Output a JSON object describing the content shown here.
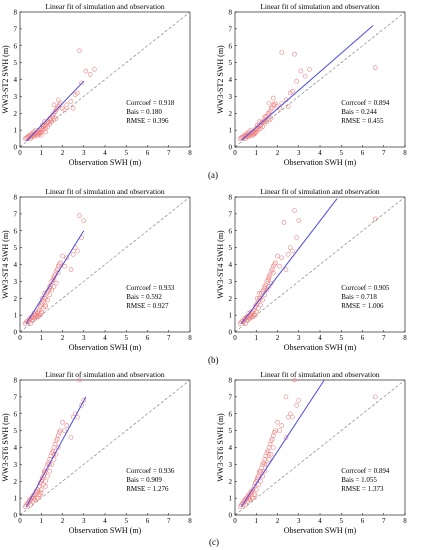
{
  "figure": {
    "row_labels": [
      "(a)",
      "(b)",
      "(c)"
    ],
    "colors": {
      "points": "#f08080",
      "fit_line": "#4a4ae0",
      "reference_line": "#888888",
      "axes": "#000000"
    }
  },
  "chart_data": [
    {
      "type": "scatter",
      "title": "Linear fit of simulation and observation",
      "xlabel": "Observation SWH (m)",
      "ylabel": "WW3-ST2   SWH (m)",
      "xlim": [
        0,
        8
      ],
      "ylim": [
        0,
        8
      ],
      "xticks": [
        "0",
        "1",
        "2",
        "3",
        "4",
        "5",
        "6",
        "7",
        "8"
      ],
      "yticks": [
        "0",
        "1",
        "2",
        "3",
        "4",
        "5",
        "6",
        "7",
        "8"
      ],
      "stats": [
        "Corrcoef = 0.918",
        "Bais = 0.180",
        "RMSE = 0.396"
      ],
      "fit_line": {
        "x": [
          0.3,
          3.0
        ],
        "y": [
          0.35,
          3.9
        ]
      },
      "x": [
        0.25,
        0.3,
        0.35,
        0.4,
        0.45,
        0.5,
        0.55,
        0.6,
        0.65,
        0.7,
        0.75,
        0.8,
        0.85,
        0.9,
        0.95,
        1.0,
        1.05,
        1.1,
        1.15,
        1.2,
        1.25,
        1.3,
        1.35,
        1.4,
        1.45,
        1.5,
        1.55,
        1.6,
        1.65,
        1.7,
        1.75,
        1.8,
        1.85,
        1.9,
        0.5,
        0.6,
        0.7,
        0.8,
        0.9,
        1.0,
        1.1,
        1.2,
        1.3,
        1.4,
        1.5,
        1.6,
        1.7,
        0.45,
        0.55,
        0.65,
        0.75,
        0.85,
        0.95,
        1.05,
        1.15,
        2.0,
        2.1,
        2.2,
        2.4,
        2.5,
        2.6,
        2.7,
        2.8,
        2.9,
        3.1,
        3.3,
        3.5,
        1.4,
        1.6,
        1.8,
        1.2,
        1.0
      ],
      "y": [
        0.5,
        0.55,
        0.6,
        0.55,
        0.65,
        0.6,
        0.7,
        0.75,
        0.7,
        0.8,
        0.75,
        0.8,
        0.9,
        0.85,
        1.0,
        1.1,
        1.05,
        1.2,
        1.3,
        1.25,
        1.4,
        1.5,
        1.45,
        1.6,
        1.7,
        1.8,
        1.9,
        2.0,
        2.1,
        2.2,
        2.3,
        2.4,
        2.5,
        2.6,
        0.5,
        0.6,
        0.65,
        0.7,
        0.8,
        0.9,
        1.0,
        1.1,
        1.2,
        1.35,
        1.5,
        1.6,
        1.7,
        0.7,
        0.8,
        0.9,
        1.0,
        0.7,
        0.8,
        1.3,
        1.5,
        2.3,
        2.2,
        2.5,
        2.7,
        2.3,
        3.1,
        3.2,
        5.7,
        3.8,
        4.5,
        4.3,
        4.6,
        1.7,
        2.5,
        2.8,
        0.9,
        0.7
      ]
    },
    {
      "type": "scatter",
      "title": "Linear fit of simulation and observation",
      "xlabel": "Observation SWH (m)",
      "ylabel": "WW3-ST2   SWH (m)",
      "xlim": [
        0,
        8
      ],
      "ylim": [
        0,
        8
      ],
      "xticks": [
        "0",
        "1",
        "2",
        "3",
        "4",
        "5",
        "6",
        "7",
        "8"
      ],
      "yticks": [
        "0",
        "1",
        "2",
        "3",
        "4",
        "5",
        "6",
        "7",
        "8"
      ],
      "stats": [
        "Corrcoef = 0.894",
        "Bais = 0.244",
        "RMSE = 0.455"
      ],
      "fit_line": {
        "x": [
          0.3,
          6.5
        ],
        "y": [
          0.4,
          7.2
        ]
      },
      "x": [
        0.25,
        0.3,
        0.35,
        0.4,
        0.45,
        0.5,
        0.55,
        0.6,
        0.65,
        0.7,
        0.75,
        0.8,
        0.85,
        0.9,
        0.95,
        1.0,
        1.05,
        1.1,
        1.15,
        1.2,
        1.25,
        1.3,
        1.35,
        1.4,
        1.45,
        1.5,
        1.55,
        1.6,
        1.65,
        1.7,
        1.75,
        1.8,
        1.85,
        1.9,
        0.5,
        0.6,
        0.7,
        0.8,
        0.9,
        1.0,
        1.1,
        1.2,
        1.3,
        1.4,
        1.5,
        1.6,
        1.7,
        0.45,
        0.55,
        0.65,
        0.75,
        0.85,
        0.95,
        1.05,
        1.15,
        2.0,
        2.1,
        2.2,
        2.4,
        2.5,
        2.6,
        2.7,
        2.8,
        2.9,
        3.1,
        3.3,
        3.5,
        1.4,
        1.6,
        1.8,
        2.2,
        6.6
      ],
      "y": [
        0.5,
        0.55,
        0.6,
        0.55,
        0.65,
        0.6,
        0.7,
        0.75,
        0.7,
        0.8,
        0.75,
        0.85,
        0.9,
        0.85,
        1.0,
        1.1,
        1.05,
        1.2,
        1.3,
        1.25,
        1.45,
        1.5,
        1.5,
        1.6,
        1.8,
        1.8,
        2.0,
        2.0,
        2.1,
        2.3,
        2.3,
        2.5,
        2.5,
        2.6,
        0.5,
        0.6,
        0.65,
        0.7,
        0.8,
        0.9,
        1.0,
        1.1,
        1.2,
        1.4,
        1.5,
        1.6,
        1.7,
        0.7,
        0.8,
        0.9,
        1.0,
        0.7,
        0.8,
        1.3,
        1.5,
        2.4,
        2.3,
        2.6,
        2.8,
        2.4,
        3.2,
        3.3,
        5.5,
        3.9,
        4.5,
        4.2,
        4.6,
        1.8,
        2.6,
        2.9,
        5.6,
        4.7
      ]
    },
    {
      "type": "scatter",
      "title": "Linear fit of simulation and observation",
      "xlabel": "Observation SWH (m)",
      "ylabel": "WW3-ST4   SWH (m)",
      "xlim": [
        0,
        8
      ],
      "ylim": [
        0,
        8
      ],
      "xticks": [
        "0",
        "1",
        "2",
        "3",
        "4",
        "5",
        "6",
        "7",
        "8"
      ],
      "yticks": [
        "0",
        "1",
        "2",
        "3",
        "4",
        "5",
        "6",
        "7",
        "8"
      ],
      "stats": [
        "Corrcoef = 0.933",
        "Bais = 0.592",
        "RMSE = 0.927"
      ],
      "fit_line": {
        "x": [
          0.3,
          3.0
        ],
        "y": [
          0.5,
          6.0
        ]
      },
      "x": [
        0.25,
        0.3,
        0.35,
        0.4,
        0.45,
        0.5,
        0.55,
        0.6,
        0.65,
        0.7,
        0.75,
        0.8,
        0.85,
        0.9,
        0.95,
        1.0,
        1.05,
        1.1,
        1.15,
        1.2,
        1.25,
        1.3,
        1.35,
        1.4,
        1.45,
        1.5,
        1.55,
        1.6,
        1.65,
        1.7,
        1.75,
        1.8,
        1.85,
        1.9,
        0.5,
        0.6,
        0.7,
        0.8,
        0.9,
        1.0,
        1.1,
        1.2,
        1.3,
        1.4,
        1.5,
        1.6,
        1.7,
        0.45,
        0.55,
        0.65,
        0.75,
        0.85,
        0.95,
        1.05,
        1.15,
        2.0,
        2.1,
        2.2,
        2.4,
        2.5,
        2.6,
        2.7,
        2.8,
        2.9,
        3.0,
        1.4,
        1.6,
        1.8,
        1.2,
        1.0
      ],
      "y": [
        0.5,
        0.6,
        0.65,
        0.6,
        0.7,
        0.8,
        0.85,
        0.9,
        0.85,
        1.0,
        1.0,
        1.1,
        1.2,
        1.3,
        1.5,
        1.6,
        1.7,
        1.8,
        2.0,
        2.0,
        2.3,
        2.4,
        2.5,
        2.7,
        2.8,
        3.0,
        3.1,
        3.3,
        3.4,
        3.6,
        3.7,
        3.9,
        4.0,
        4.1,
        0.5,
        0.7,
        0.8,
        0.9,
        1.0,
        1.2,
        1.4,
        1.6,
        1.9,
        2.2,
        2.5,
        2.7,
        2.9,
        0.8,
        0.9,
        1.1,
        1.2,
        0.9,
        1.0,
        2.0,
        2.3,
        4.5,
        3.9,
        4.4,
        3.7,
        4.6,
        5.0,
        4.8,
        6.9,
        5.6,
        6.6,
        2.6,
        3.2,
        3.5,
        1.5,
        1.1
      ]
    },
    {
      "type": "scatter",
      "title": "Linear fit of simulation and observation",
      "xlabel": "Observation SWH (m)",
      "ylabel": "WW3-ST4   SWH (m)",
      "xlim": [
        0,
        8
      ],
      "ylim": [
        0,
        8
      ],
      "xticks": [
        "0",
        "1",
        "2",
        "3",
        "4",
        "5",
        "6",
        "7",
        "8"
      ],
      "yticks": [
        "0",
        "1",
        "2",
        "3",
        "4",
        "5",
        "6",
        "7",
        "8"
      ],
      "stats": [
        "Corrcoef = 0.905",
        "Bais = 0.718",
        "RMSE = 1.006"
      ],
      "fit_line": {
        "x": [
          0.3,
          4.8
        ],
        "y": [
          0.5,
          7.9
        ]
      },
      "x": [
        0.25,
        0.3,
        0.35,
        0.4,
        0.45,
        0.5,
        0.55,
        0.6,
        0.65,
        0.7,
        0.75,
        0.8,
        0.85,
        0.9,
        0.95,
        1.0,
        1.05,
        1.1,
        1.15,
        1.2,
        1.25,
        1.3,
        1.35,
        1.4,
        1.45,
        1.5,
        1.55,
        1.6,
        1.65,
        1.7,
        1.75,
        1.8,
        1.85,
        1.9,
        0.5,
        0.6,
        0.7,
        0.8,
        0.9,
        1.0,
        1.1,
        1.2,
        1.3,
        1.4,
        1.5,
        1.6,
        1.7,
        0.45,
        0.55,
        0.65,
        0.75,
        0.85,
        0.95,
        1.05,
        1.15,
        2.0,
        2.1,
        2.2,
        2.4,
        2.5,
        2.6,
        2.7,
        2.8,
        2.9,
        3.0,
        1.4,
        1.6,
        1.8,
        2.3,
        6.6
      ],
      "y": [
        0.5,
        0.6,
        0.65,
        0.6,
        0.7,
        0.8,
        0.85,
        0.9,
        0.85,
        1.0,
        1.0,
        1.1,
        1.2,
        1.3,
        1.5,
        1.6,
        1.7,
        1.8,
        2.0,
        2.0,
        2.3,
        2.4,
        2.5,
        2.7,
        2.8,
        3.0,
        3.1,
        3.3,
        3.4,
        3.6,
        3.7,
        3.9,
        4.0,
        4.1,
        0.5,
        0.7,
        0.8,
        0.9,
        1.0,
        1.2,
        1.4,
        1.6,
        1.9,
        2.2,
        2.5,
        2.7,
        2.9,
        0.8,
        0.9,
        1.1,
        1.2,
        0.9,
        1.0,
        2.0,
        2.3,
        4.5,
        3.9,
        4.4,
        3.7,
        4.6,
        5.0,
        4.8,
        7.2,
        5.6,
        6.6,
        2.6,
        3.2,
        3.5,
        6.5,
        6.7
      ]
    },
    {
      "type": "scatter",
      "title": "Linear fit of simulation and observation",
      "xlabel": "Observation SWH (m)",
      "ylabel": "WW3-ST6   SWH (m)",
      "xlim": [
        0,
        8
      ],
      "ylim": [
        0,
        8
      ],
      "xticks": [
        "0",
        "1",
        "2",
        "3",
        "4",
        "5",
        "6",
        "7",
        "8"
      ],
      "yticks": [
        "0",
        "1",
        "2",
        "3",
        "4",
        "5",
        "6",
        "7",
        "8"
      ],
      "stats": [
        "Corrcoef = 0.936",
        "Bais = 0.909",
        "RMSE = 1.276"
      ],
      "fit_line": {
        "x": [
          0.3,
          3.1
        ],
        "y": [
          0.5,
          7.0
        ]
      },
      "x": [
        0.25,
        0.3,
        0.35,
        0.4,
        0.45,
        0.5,
        0.55,
        0.6,
        0.65,
        0.7,
        0.75,
        0.8,
        0.85,
        0.9,
        0.95,
        1.0,
        1.05,
        1.1,
        1.15,
        1.2,
        1.25,
        1.3,
        1.35,
        1.4,
        1.45,
        1.5,
        1.55,
        1.6,
        1.65,
        1.7,
        1.75,
        1.8,
        1.85,
        1.9,
        0.5,
        0.6,
        0.7,
        0.8,
        0.9,
        1.0,
        1.1,
        1.2,
        1.3,
        1.4,
        1.5,
        1.6,
        1.7,
        0.45,
        0.55,
        0.65,
        0.75,
        0.85,
        0.95,
        1.05,
        1.15,
        2.0,
        2.1,
        2.2,
        2.4,
        2.5,
        2.6,
        2.7,
        2.8,
        2.9,
        3.0,
        1.4,
        1.6,
        1.8,
        1.2,
        1.0
      ],
      "y": [
        0.5,
        0.6,
        0.7,
        0.7,
        0.8,
        0.9,
        1.0,
        1.1,
        1.0,
        1.2,
        1.3,
        1.4,
        1.5,
        1.7,
        1.9,
        2.0,
        2.1,
        2.3,
        2.5,
        2.6,
        2.8,
        3.0,
        3.1,
        3.3,
        3.5,
        3.7,
        3.8,
        4.0,
        4.2,
        4.4,
        4.5,
        4.7,
        4.9,
        5.0,
        0.6,
        0.8,
        0.9,
        1.0,
        1.2,
        1.5,
        1.8,
        2.0,
        2.3,
        2.6,
        3.0,
        3.3,
        3.6,
        0.9,
        1.0,
        1.2,
        1.4,
        1.0,
        1.2,
        2.2,
        2.6,
        5.5,
        5.0,
        5.3,
        4.6,
        5.8,
        6.0,
        5.8,
        8.0,
        6.5,
        6.8,
        3.0,
        3.6,
        4.0,
        1.7,
        1.3
      ]
    },
    {
      "type": "scatter",
      "title": "Linear fit of simulation and observation",
      "xlabel": "Observation SWH (m)",
      "ylabel": "WW3-ST6   SWH (m)",
      "xlim": [
        0,
        8
      ],
      "ylim": [
        0,
        8
      ],
      "xticks": [
        "0",
        "1",
        "2",
        "3",
        "4",
        "5",
        "6",
        "7",
        "8"
      ],
      "yticks": [
        "0",
        "1",
        "2",
        "3",
        "4",
        "5",
        "6",
        "7",
        "8"
      ],
      "stats": [
        "Corrcoef = 0.894",
        "Bais = 1.055",
        "RMSE = 1.373"
      ],
      "fit_line": {
        "x": [
          0.3,
          4.2
        ],
        "y": [
          0.5,
          8.0
        ]
      },
      "x": [
        0.25,
        0.3,
        0.35,
        0.4,
        0.45,
        0.5,
        0.55,
        0.6,
        0.65,
        0.7,
        0.75,
        0.8,
        0.85,
        0.9,
        0.95,
        1.0,
        1.05,
        1.1,
        1.15,
        1.2,
        1.25,
        1.3,
        1.35,
        1.4,
        1.45,
        1.5,
        1.55,
        1.6,
        1.65,
        1.7,
        1.75,
        1.8,
        1.85,
        1.9,
        0.5,
        0.6,
        0.7,
        0.8,
        0.9,
        1.0,
        1.1,
        1.2,
        1.3,
        1.4,
        1.5,
        1.6,
        1.7,
        0.45,
        0.55,
        0.65,
        0.75,
        0.85,
        0.95,
        1.05,
        1.15,
        2.0,
        2.1,
        2.2,
        2.4,
        2.5,
        2.6,
        2.7,
        2.8,
        2.9,
        3.0,
        1.4,
        1.6,
        1.8,
        2.4,
        6.6
      ],
      "y": [
        0.5,
        0.6,
        0.7,
        0.7,
        0.8,
        0.9,
        1.0,
        1.1,
        1.0,
        1.2,
        1.3,
        1.4,
        1.5,
        1.7,
        1.9,
        2.0,
        2.1,
        2.3,
        2.5,
        2.6,
        2.8,
        3.0,
        3.1,
        3.3,
        3.5,
        3.7,
        3.8,
        4.0,
        4.2,
        4.4,
        4.5,
        4.7,
        4.9,
        5.0,
        0.6,
        0.8,
        0.9,
        1.0,
        1.2,
        1.5,
        1.8,
        2.0,
        2.3,
        2.6,
        3.0,
        3.3,
        3.6,
        0.9,
        1.0,
        1.2,
        1.4,
        1.0,
        1.2,
        2.2,
        2.6,
        5.5,
        5.0,
        5.3,
        4.6,
        5.8,
        6.0,
        5.8,
        8.0,
        6.5,
        6.8,
        3.0,
        3.6,
        4.0,
        7.0,
        7.0
      ]
    }
  ]
}
